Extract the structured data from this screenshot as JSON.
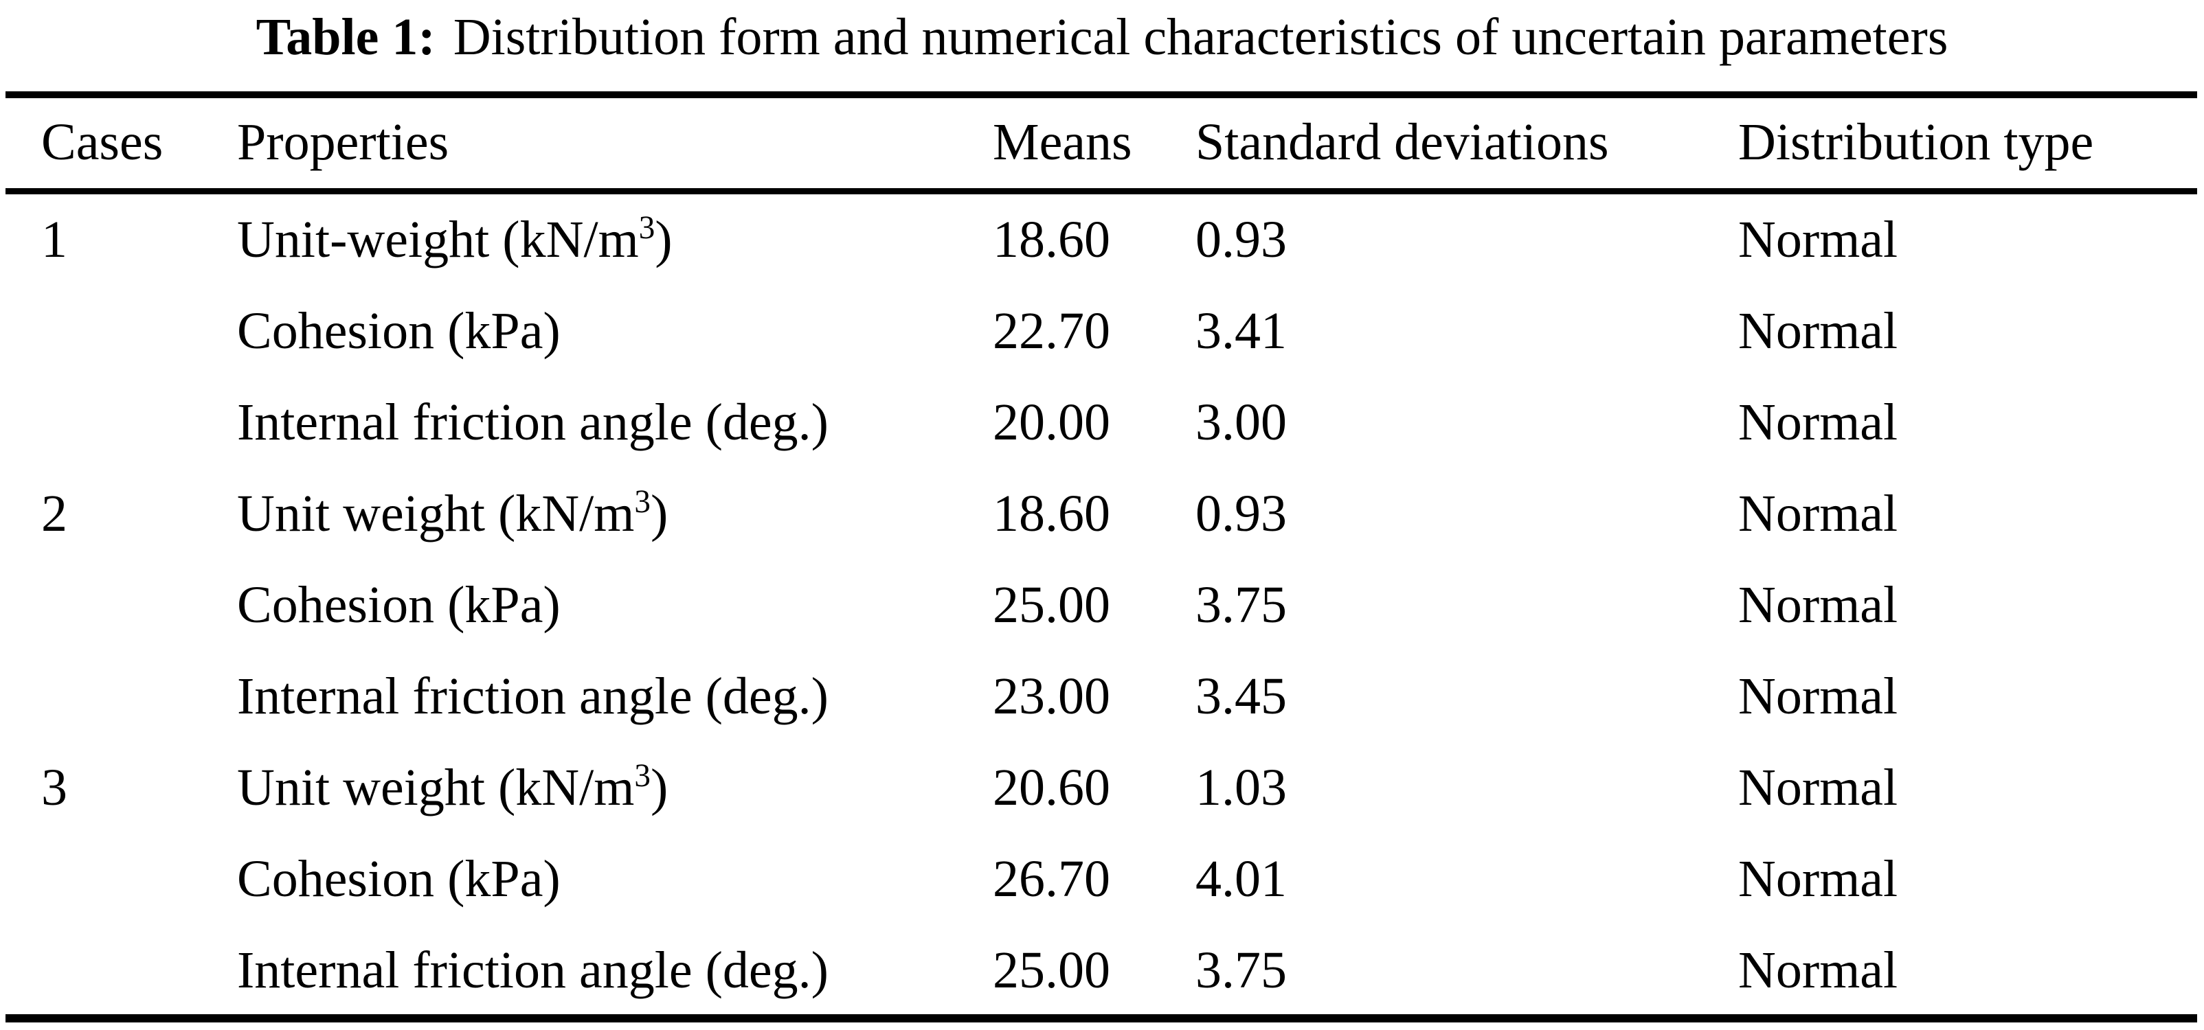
{
  "title": {
    "label": "Table 1:",
    "text": "Distribution form and numerical characteristics of uncertain parameters"
  },
  "table": {
    "columns": [
      "Cases",
      "Properties",
      "Means",
      "Standard deviations",
      "Distribution type"
    ],
    "rows": [
      {
        "case": "1",
        "property": "Unit-weight (kN/m",
        "property_sup": "3",
        "property_suffix": ")",
        "mean": "18.60",
        "std": "0.93",
        "dist": "Normal"
      },
      {
        "case": "",
        "property": "Cohesion (kPa)",
        "property_sup": "",
        "property_suffix": "",
        "mean": "22.70",
        "std": "3.41",
        "dist": "Normal"
      },
      {
        "case": "",
        "property": "Internal friction angle (deg.)",
        "property_sup": "",
        "property_suffix": "",
        "mean": "20.00",
        "std": "3.00",
        "dist": "Normal"
      },
      {
        "case": "2",
        "property": "Unit weight (kN/m",
        "property_sup": "3",
        "property_suffix": ")",
        "mean": "18.60",
        "std": "0.93",
        "dist": "Normal"
      },
      {
        "case": "",
        "property": "Cohesion (kPa)",
        "property_sup": "",
        "property_suffix": "",
        "mean": "25.00",
        "std": "3.75",
        "dist": "Normal"
      },
      {
        "case": "",
        "property": "Internal friction angle (deg.)",
        "property_sup": "",
        "property_suffix": "",
        "mean": "23.00",
        "std": "3.45",
        "dist": "Normal"
      },
      {
        "case": "3",
        "property": "Unit weight (kN/m",
        "property_sup": "3",
        "property_suffix": ")",
        "mean": "20.60",
        "std": "1.03",
        "dist": "Normal"
      },
      {
        "case": "",
        "property": "Cohesion (kPa)",
        "property_sup": "",
        "property_suffix": "",
        "mean": "26.70",
        "std": "4.01",
        "dist": "Normal"
      },
      {
        "case": "",
        "property": "Internal friction angle (deg.)",
        "property_sup": "",
        "property_suffix": "",
        "mean": "25.00",
        "std": "3.75",
        "dist": "Normal"
      }
    ]
  },
  "colors": {
    "text": "#000000",
    "background": "#ffffff",
    "rule": "#000000"
  }
}
